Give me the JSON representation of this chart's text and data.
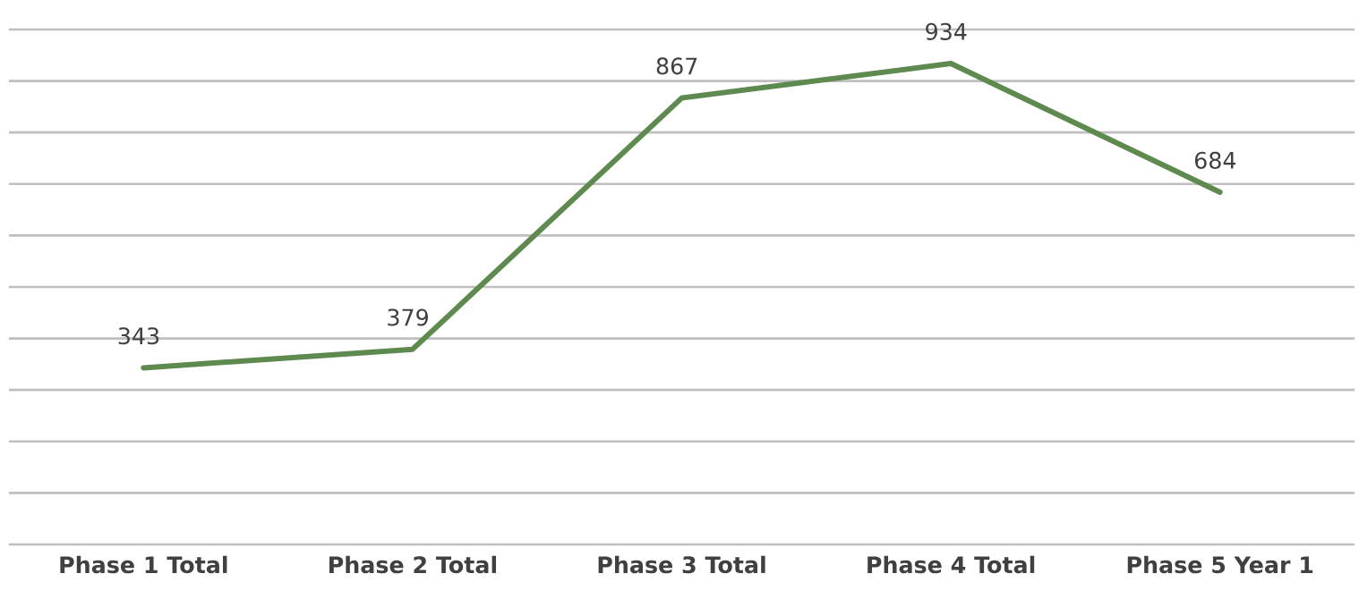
{
  "chart_data": {
    "type": "line",
    "categories": [
      "Phase 1 Total",
      "Phase 2 Total",
      "Phase 3 Total",
      "Phase 4 Total",
      "Phase 5 Year 1"
    ],
    "series": [
      {
        "color": "#5e8a4f",
        "values": [
          343,
          379,
          867,
          934,
          684
        ]
      }
    ],
    "ylim": [
      0,
      1000
    ],
    "yticks": [
      {
        "value": 0,
        "label": null
      },
      {
        "value": 100,
        "label": null
      },
      {
        "value": 200,
        "label": null
      },
      {
        "value": 300,
        "label": null
      },
      {
        "value": 400,
        "label": null
      },
      {
        "value": 500,
        "label": null
      },
      {
        "value": 600,
        "label": null
      },
      {
        "value": 700,
        "label": null
      },
      {
        "value": 800,
        "label": null
      },
      {
        "value": 900,
        "label": null
      },
      {
        "value": 1000,
        "label": null
      }
    ],
    "grid": "y",
    "tick_labels": "x",
    "data_labels": true,
    "marker": "none",
    "line_style": "solid"
  }
}
